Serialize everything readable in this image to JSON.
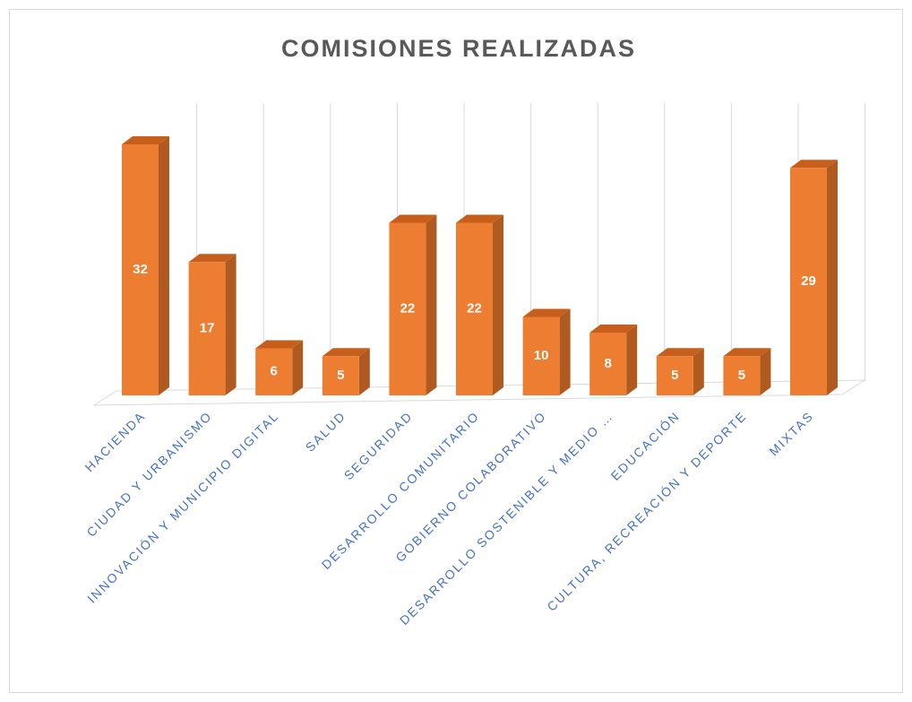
{
  "chart_data": {
    "type": "bar3d",
    "title": "COMISIONES REALIZADAS",
    "categories": [
      "HACIENDA",
      "CIUDAD Y URBANISMO",
      "INNOVACIÓN Y MUNICIPIO DIGITAL",
      "SALUD",
      "SEGURIDAD",
      "DESARROLLO COMUNITARIO",
      "GOBIERNO COLABORATIVO",
      "DESARROLLO SOSTENIBLE Y MEDIO …",
      "EDUCACIÓN",
      "CULTURA, RECREACIÓN Y DEPORTE",
      "MIXTAS"
    ],
    "values": [
      32,
      17,
      6,
      5,
      22,
      22,
      10,
      8,
      5,
      5,
      29
    ],
    "color": "#ed7d31"
  }
}
